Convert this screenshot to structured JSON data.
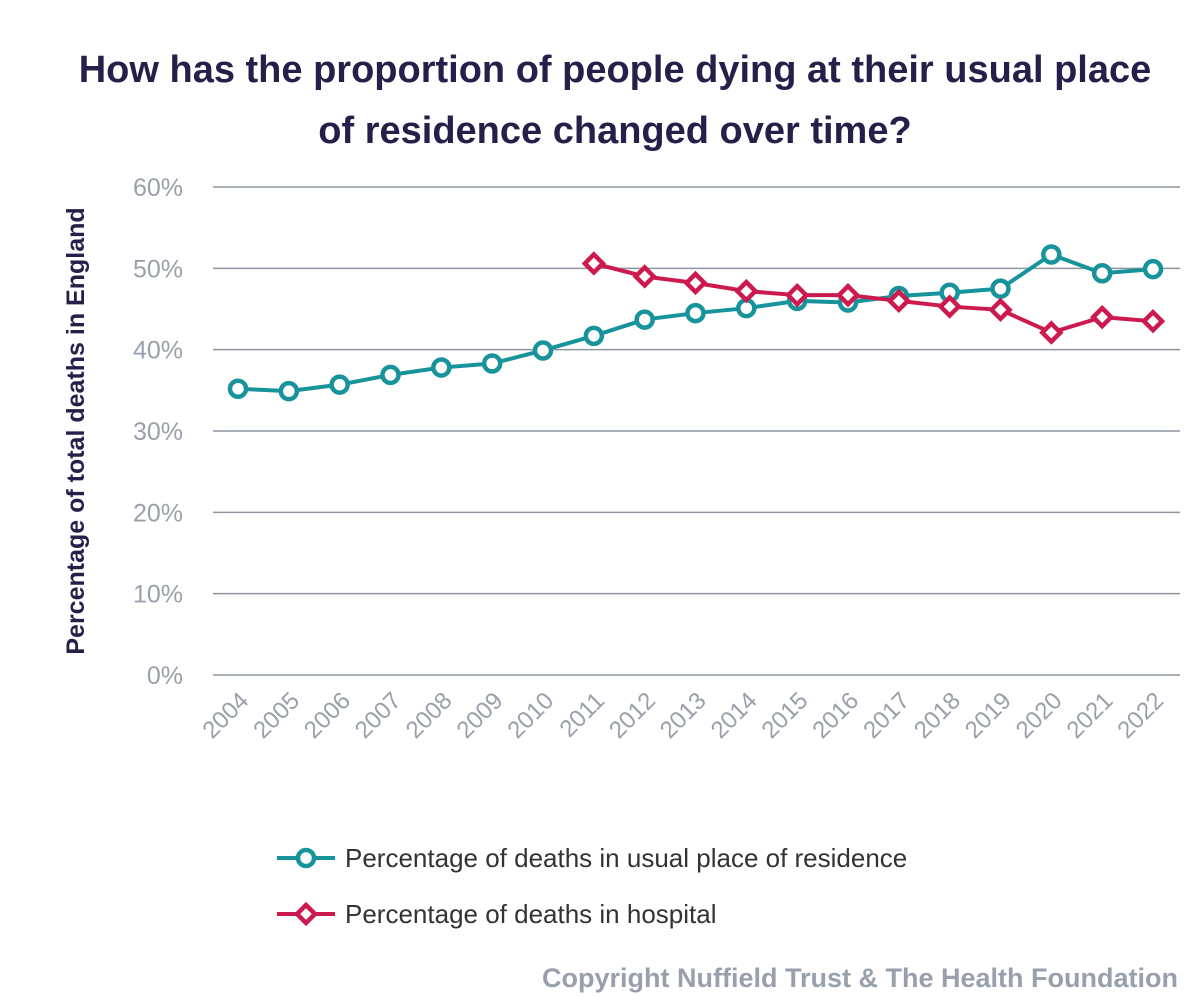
{
  "chart_data": {
    "type": "line",
    "title": "How has the proportion of people dying at their usual place of residence changed over time?",
    "title_lines": [
      "How has the proportion of people dying at their usual place",
      "of residence changed over time?"
    ],
    "xlabel": "",
    "ylabel": "Percentage of total deaths in England",
    "ylim": [
      0,
      60
    ],
    "yticks": [
      "0%",
      "10%",
      "20%",
      "30%",
      "40%",
      "50%",
      "60%"
    ],
    "ytick_values": [
      0,
      10,
      20,
      30,
      40,
      50,
      60
    ],
    "grid": true,
    "legend_position": "bottom",
    "x": [
      "2004",
      "2005",
      "2006",
      "2007",
      "2008",
      "2009",
      "2010",
      "2011",
      "2012",
      "2013",
      "2014",
      "2015",
      "2016",
      "2017",
      "2018",
      "2019",
      "2020",
      "2021",
      "2022"
    ],
    "series": [
      {
        "name": "Percentage of deaths in usual place of residence",
        "color": "#17939b",
        "marker": "circle",
        "values": [
          35.2,
          34.9,
          35.7,
          36.9,
          37.8,
          38.3,
          39.9,
          41.7,
          43.7,
          44.5,
          45.1,
          46.0,
          45.8,
          46.6,
          47.0,
          47.5,
          51.7,
          49.4,
          49.9
        ]
      },
      {
        "name": "Percentage of deaths in hospital",
        "color": "#cc1a4f",
        "marker": "diamond",
        "values": [
          null,
          null,
          null,
          null,
          null,
          null,
          null,
          50.6,
          49.0,
          48.2,
          47.2,
          46.7,
          46.7,
          46.0,
          45.3,
          44.9,
          42.1,
          44.0,
          43.5
        ]
      }
    ]
  },
  "footer": {
    "copyright": "Copyright Nuffield Trust & The Health Foundation"
  }
}
